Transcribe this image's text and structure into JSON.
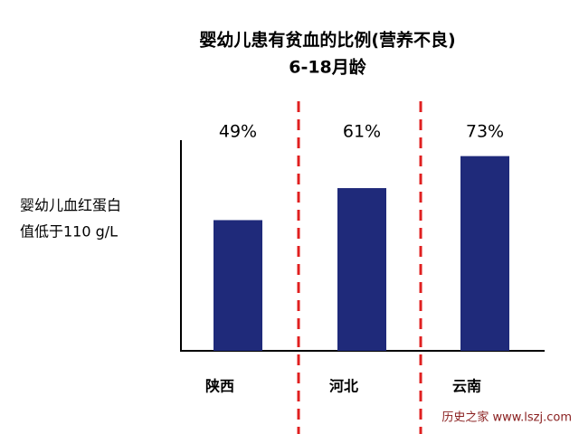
{
  "chart_data": {
    "type": "bar",
    "title": "婴幼儿患有贫血的比例(营养不良)",
    "subtitle": "6-18月龄",
    "y_label_lines": [
      "婴幼儿血红蛋白",
      "值低于110 g/L"
    ],
    "categories": [
      "陕西",
      "河北",
      "云南"
    ],
    "values": [
      49,
      61,
      73
    ],
    "value_labels": [
      "49%",
      "61%",
      "73%"
    ],
    "color": "#1f2a7a",
    "divider_color": "#e02020",
    "watermark": "历史之家 www.lszj.com"
  }
}
